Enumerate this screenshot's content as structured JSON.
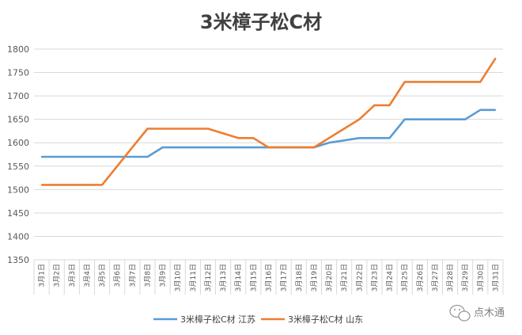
{
  "chart_data": {
    "type": "line",
    "title": "3米樟子松C材",
    "xlabel": "",
    "ylabel": "",
    "ylim": [
      1350,
      1800
    ],
    "yticks": [
      1350,
      1400,
      1450,
      1500,
      1550,
      1600,
      1650,
      1700,
      1750,
      1800
    ],
    "grid": true,
    "legend_position": "bottom",
    "categories": [
      "3月1日",
      "3月2日",
      "3月3日",
      "3月4日",
      "3月5日",
      "3月6日",
      "3月7日",
      "3月8日",
      "3月9日",
      "3月10日",
      "3月11日",
      "3月12日",
      "3月13日",
      "3月14日",
      "3月15日",
      "3月16日",
      "3月17日",
      "3月18日",
      "3月19日",
      "3月20日",
      "3月21日",
      "3月22日",
      "3月23日",
      "3月24日",
      "3月25日",
      "3月26日",
      "3月27日",
      "3月28日",
      "3月29日",
      "3月30日",
      "3月31日"
    ],
    "series": [
      {
        "name": "3米樟子松C材 江苏",
        "color": "#5B9BD5",
        "values": [
          1570,
          1570,
          1570,
          1570,
          1570,
          1570,
          1570,
          1570,
          1590,
          1590,
          1590,
          1590,
          1590,
          1590,
          1590,
          1590,
          1590,
          1590,
          1590,
          1600,
          1605,
          1610,
          1610,
          1610,
          1650,
          1650,
          1650,
          1650,
          1650,
          1670,
          1670
        ]
      },
      {
        "name": "3米樟子松C材 山东",
        "color": "#ED7D31",
        "values": [
          1510,
          1510,
          1510,
          1510,
          1510,
          1550,
          1590,
          1630,
          1630,
          1630,
          1630,
          1630,
          1620,
          1610,
          1610,
          1590,
          1590,
          1590,
          1590,
          1610,
          1630,
          1650,
          1680,
          1680,
          1730,
          1730,
          1730,
          1730,
          1730,
          1730,
          1780
        ]
      }
    ]
  },
  "watermark": {
    "text": "点木通",
    "icon": "wechat-icon"
  }
}
